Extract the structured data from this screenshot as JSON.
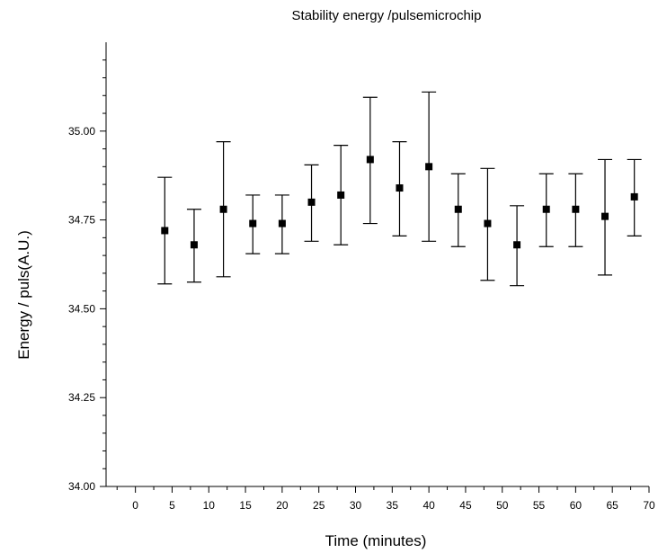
{
  "chart_data": {
    "type": "scatter",
    "title": "Stability energy /pulsemicrochip",
    "xlabel": "Time (minutes)",
    "ylabel": "Energy / puls(A.U.)",
    "xlim": [
      -4,
      70
    ],
    "ylim": [
      34.0,
      35.25
    ],
    "x_ticks": [
      0,
      5,
      10,
      15,
      20,
      25,
      30,
      35,
      40,
      45,
      50,
      55,
      60,
      65,
      70
    ],
    "y_ticks": [
      34.0,
      34.25,
      34.5,
      34.75,
      35.0
    ],
    "x_tick_labels": [
      "0",
      "5",
      "10",
      "15",
      "20",
      "25",
      "30",
      "35",
      "40",
      "45",
      "50",
      "55",
      "60",
      "65",
      "70"
    ],
    "y_tick_labels": [
      "34.00",
      "34.25",
      "34.50",
      "34.75",
      "35.00"
    ],
    "grid": false,
    "legend": "none",
    "marker_color": "#000000",
    "series": [
      {
        "marker": "square",
        "points": [
          {
            "x": 4,
            "y": 34.72,
            "low": 34.57,
            "high": 34.87
          },
          {
            "x": 8,
            "y": 34.68,
            "low": 34.575,
            "high": 34.78
          },
          {
            "x": 12,
            "y": 34.78,
            "low": 34.59,
            "high": 34.97
          },
          {
            "x": 16,
            "y": 34.74,
            "low": 34.655,
            "high": 34.82
          },
          {
            "x": 20,
            "y": 34.74,
            "low": 34.655,
            "high": 34.82
          },
          {
            "x": 24,
            "y": 34.8,
            "low": 34.69,
            "high": 34.905
          },
          {
            "x": 28,
            "y": 34.82,
            "low": 34.68,
            "high": 34.96
          },
          {
            "x": 32,
            "y": 34.92,
            "low": 34.74,
            "high": 35.095
          },
          {
            "x": 36,
            "y": 34.84,
            "low": 34.705,
            "high": 34.97
          },
          {
            "x": 40,
            "y": 34.9,
            "low": 34.69,
            "high": 35.11
          },
          {
            "x": 44,
            "y": 34.78,
            "low": 34.675,
            "high": 34.88
          },
          {
            "x": 48,
            "y": 34.74,
            "low": 34.58,
            "high": 34.895
          },
          {
            "x": 52,
            "y": 34.68,
            "low": 34.565,
            "high": 34.79
          },
          {
            "x": 56,
            "y": 34.78,
            "low": 34.675,
            "high": 34.88
          },
          {
            "x": 60,
            "y": 34.78,
            "low": 34.675,
            "high": 34.88
          },
          {
            "x": 64,
            "y": 34.76,
            "low": 34.595,
            "high": 34.92
          },
          {
            "x": 68,
            "y": 34.815,
            "low": 34.705,
            "high": 34.92
          }
        ]
      }
    ]
  }
}
